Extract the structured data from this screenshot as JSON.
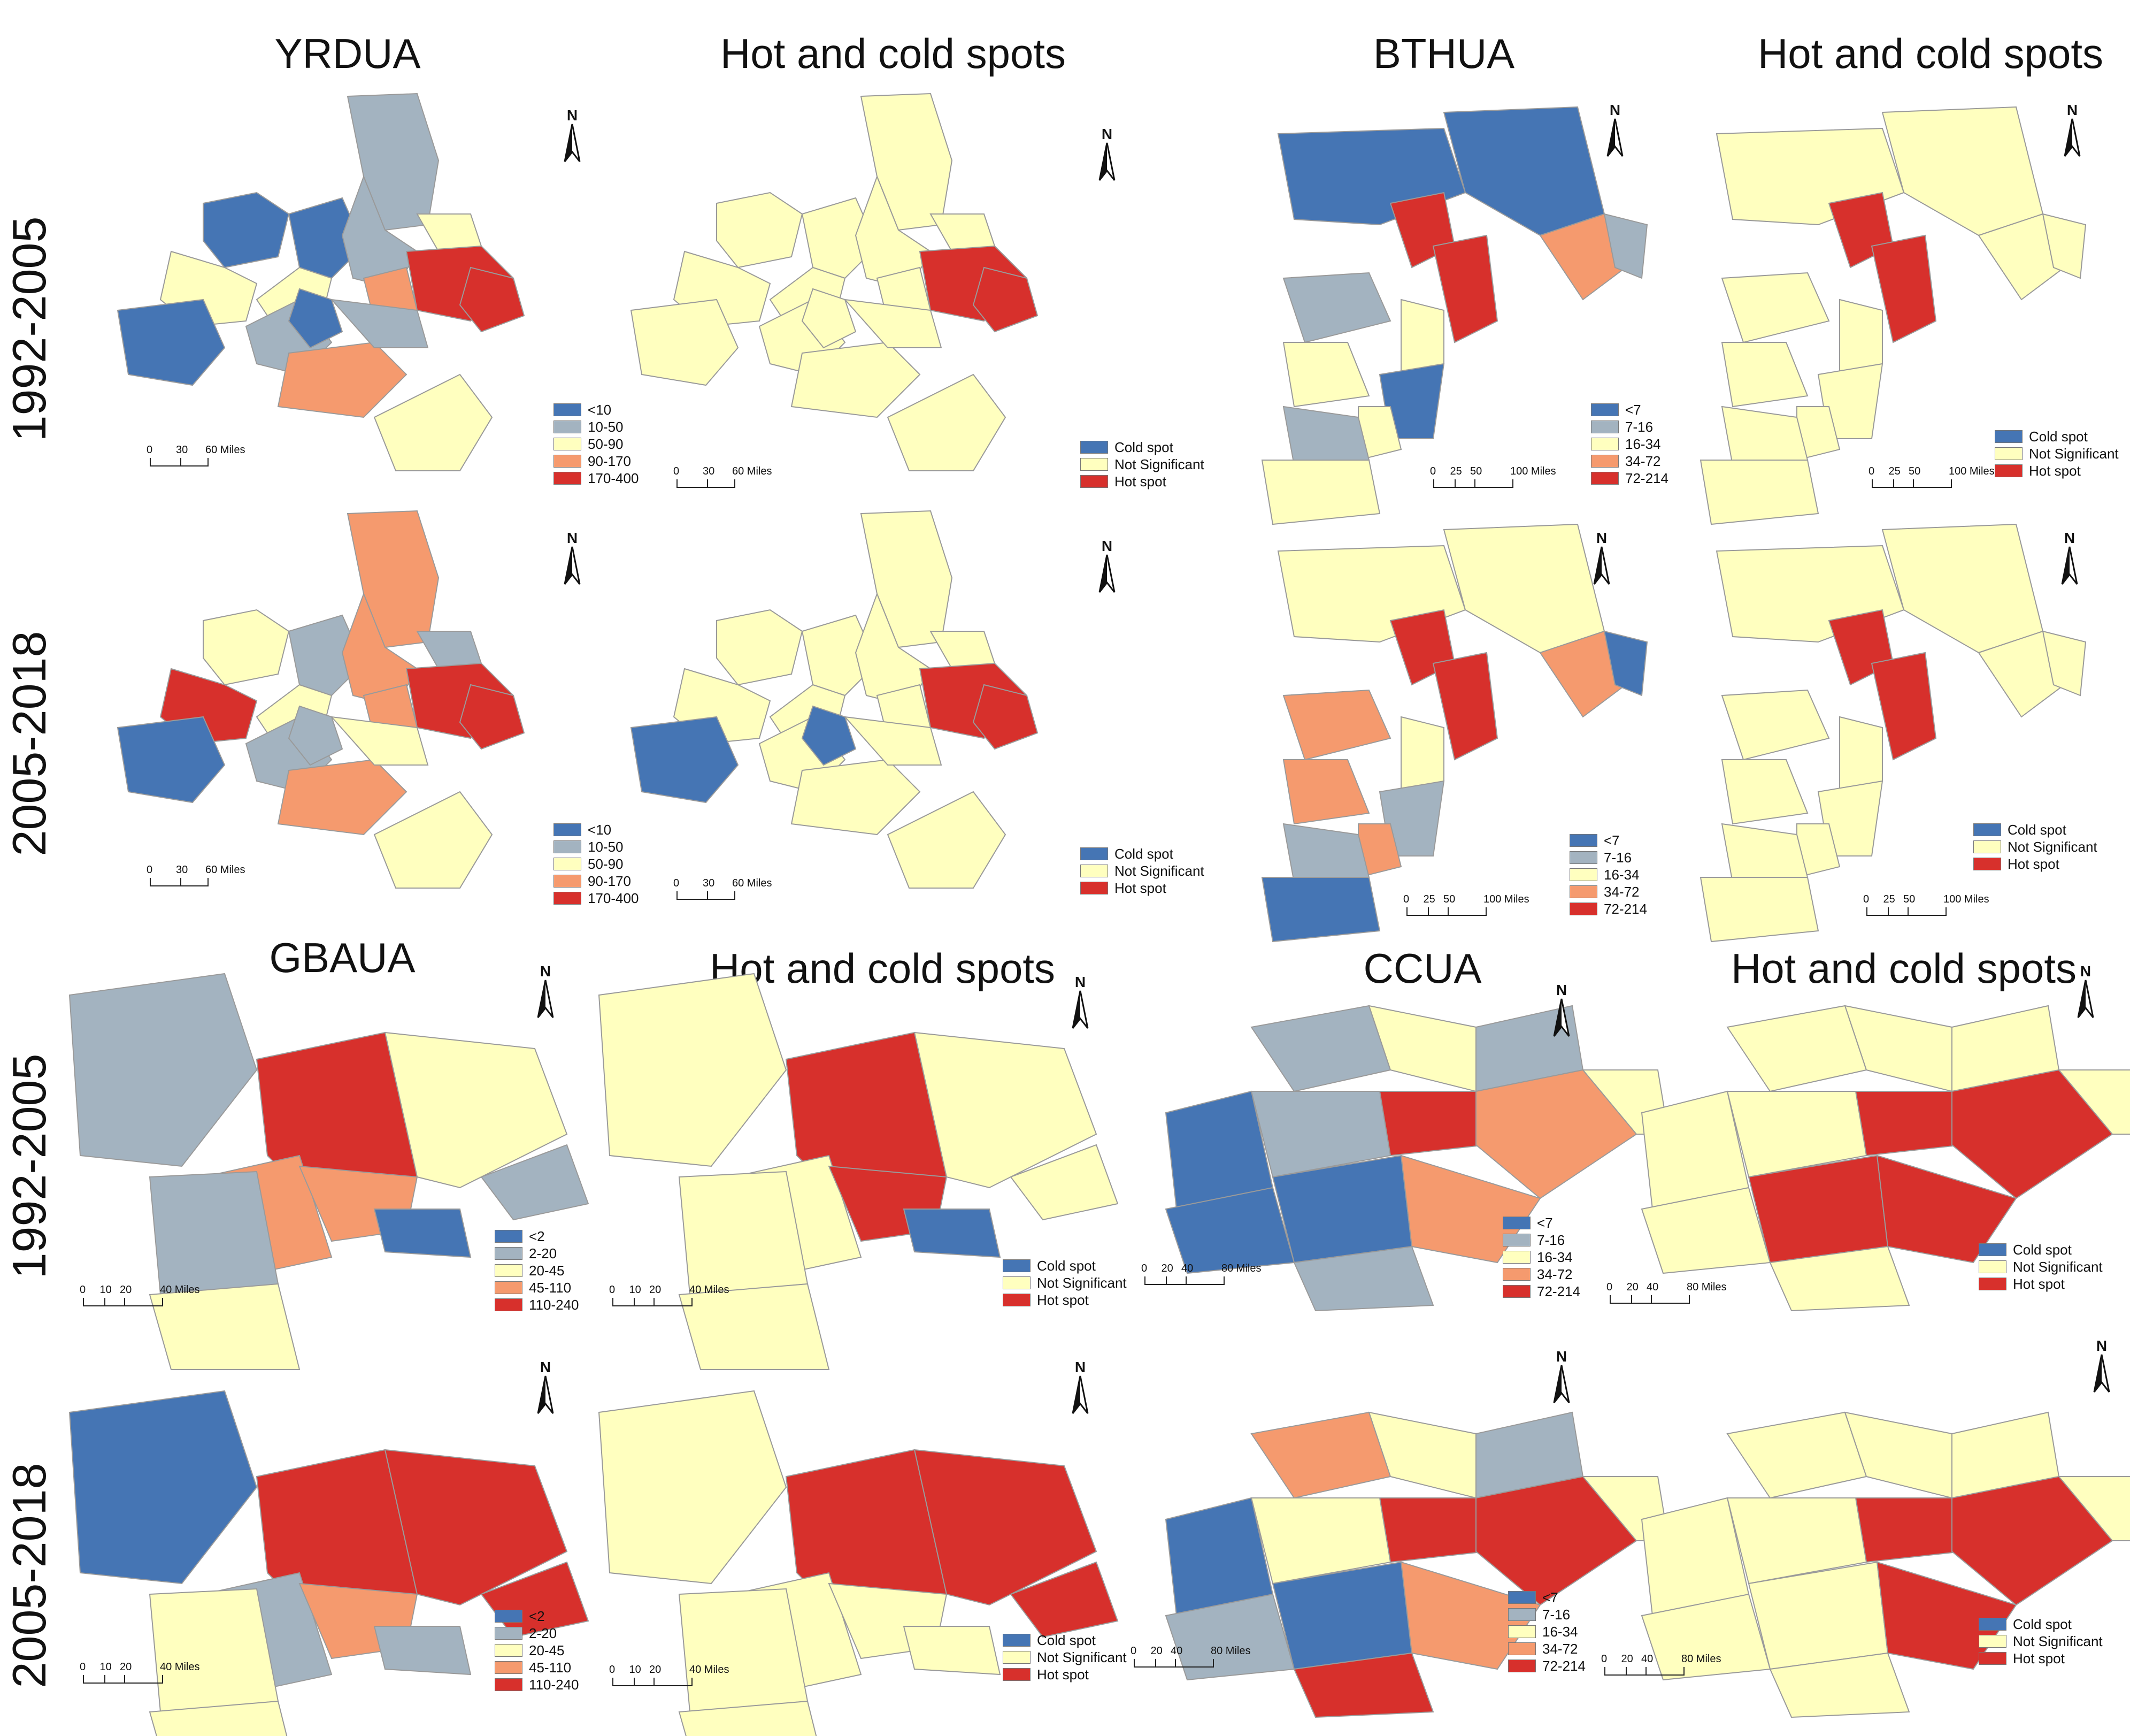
{
  "colors": {
    "c1": "#4575b4",
    "c2": "#a3b3c0",
    "c3": "#ffffbf",
    "c4": "#f59a6e",
    "c5": "#d7302c",
    "cold": "#4575b4",
    "ns": "#ffffbf",
    "hot": "#d7302c",
    "border": "#9a9a9a"
  },
  "periods": [
    "1992-2005",
    "2005-2018",
    "1992-2005",
    "2005-2018"
  ],
  "titles": {
    "yrdua": "YRDUA",
    "bthua": "BTHUA",
    "gbaua": "GBAUA",
    "ccua": "CCUA",
    "hot_cold": "Hot and cold spots"
  },
  "north_label": "N",
  "hotcold_legend": [
    "Cold spot",
    "Not Significant",
    "Hot spot"
  ],
  "legends": {
    "yrdua": [
      "<10",
      "10-50",
      "50-90",
      "90-170",
      "170-400"
    ],
    "bthua": [
      "<7",
      "7-16",
      "16-34",
      "34-72",
      "72-214"
    ],
    "gbaua": [
      "<2",
      "2-20",
      "20-45",
      "45-110",
      "110-240"
    ],
    "ccua": [
      "<7",
      "7-16",
      "16-34",
      "34-72",
      "72-214"
    ]
  },
  "scales": {
    "yrdua": [
      "0",
      "30",
      "60 Miles"
    ],
    "bthua": [
      "0",
      "25",
      "50",
      "100 Miles"
    ],
    "gbaua": [
      "0",
      "10",
      "20",
      "40 Miles"
    ],
    "ccua": [
      "0",
      "20",
      "40",
      "80 Miles"
    ]
  },
  "maps": {
    "yrdua_1992": [
      "c2",
      "c1",
      "c3",
      "c1",
      "c3",
      "c2",
      "c3",
      "c5",
      "c4",
      "c1",
      "c2",
      "c4",
      "c2",
      "c1",
      "c5",
      "c3"
    ],
    "yrdua_1992_hc": [
      "ns",
      "ns",
      "ns",
      "ns",
      "ns",
      "ns",
      "ns",
      "hot",
      "ns",
      "ns",
      "ns",
      "ns",
      "ns",
      "ns",
      "hot",
      "ns"
    ],
    "yrdua_2005": [
      "c4",
      "c3",
      "c5",
      "c2",
      "c3",
      "c4",
      "c2",
      "c5",
      "c4",
      "c1",
      "c2",
      "c4",
      "c3",
      "c2",
      "c5",
      "c3"
    ],
    "yrdua_2005_hc": [
      "ns",
      "ns",
      "ns",
      "ns",
      "ns",
      "ns",
      "ns",
      "hot",
      "ns",
      "cold",
      "ns",
      "ns",
      "ns",
      "cold",
      "hot",
      "ns"
    ],
    "bthua_1992": [
      "c1",
      "c1",
      "c5",
      "c5",
      "c4",
      "c2",
      "c2",
      "c3",
      "c3",
      "c1",
      "c3",
      "c2",
      "c3"
    ],
    "bthua_1992_hc": [
      "ns",
      "ns",
      "hot",
      "hot",
      "ns",
      "ns",
      "ns",
      "ns",
      "ns",
      "ns",
      "ns",
      "ns",
      "ns"
    ],
    "bthua_2005": [
      "c3",
      "c3",
      "c5",
      "c5",
      "c4",
      "c1",
      "c4",
      "c4",
      "c3",
      "c2",
      "c4",
      "c2",
      "c1"
    ],
    "bthua_2005_hc": [
      "ns",
      "ns",
      "hot",
      "hot",
      "ns",
      "ns",
      "ns",
      "ns",
      "ns",
      "ns",
      "ns",
      "ns",
      "ns"
    ],
    "gbaua_1992": [
      "c2",
      "c5",
      "c3",
      "c4",
      "c2",
      "c4",
      "c1",
      "c3",
      "c2"
    ],
    "gbaua_1992_hc": [
      "ns",
      "hot",
      "ns",
      "ns",
      "ns",
      "hot",
      "cold",
      "ns",
      "ns"
    ],
    "gbaua_2005": [
      "c1",
      "c5",
      "c5",
      "c2",
      "c3",
      "c4",
      "c2",
      "c3",
      "c5"
    ],
    "gbaua_2005_hc": [
      "ns",
      "hot",
      "hot",
      "ns",
      "ns",
      "ns",
      "ns",
      "ns",
      "hot"
    ],
    "ccua_1992": [
      "c2",
      "c3",
      "c2",
      "c5",
      "c4",
      "c1",
      "c2",
      "c1",
      "c4",
      "c3",
      "c2",
      "c1"
    ],
    "ccua_1992_hc": [
      "ns",
      "ns",
      "ns",
      "hot",
      "hot",
      "ns",
      "ns",
      "hot",
      "hot",
      "ns",
      "ns",
      "ns"
    ],
    "ccua_2005": [
      "c4",
      "c3",
      "c2",
      "c5",
      "c5",
      "c1",
      "c3",
      "c1",
      "c4",
      "c3",
      "c5",
      "c2"
    ],
    "ccua_2005_hc": [
      "ns",
      "ns",
      "ns",
      "hot",
      "hot",
      "ns",
      "ns",
      "ns",
      "hot",
      "ns",
      "ns",
      "ns"
    ]
  }
}
